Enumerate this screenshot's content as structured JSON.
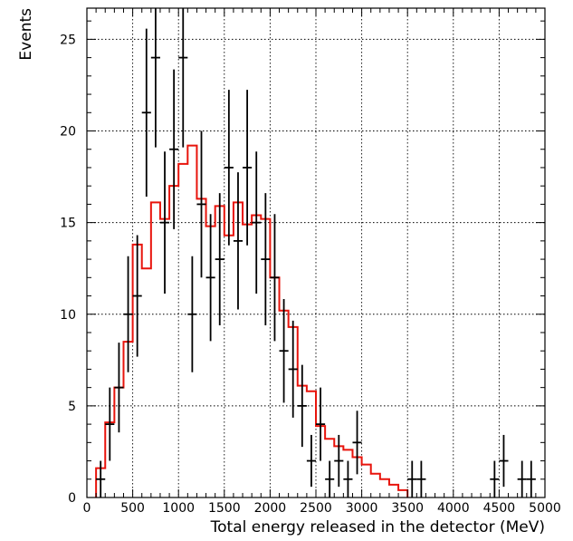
{
  "chart_data": {
    "type": "line",
    "title": "",
    "xlabel": "Total energy released in the detector (MeV)",
    "ylabel": "Events",
    "xlim": [
      0,
      5000
    ],
    "ylim": [
      0,
      26.7
    ],
    "x_ticks": [
      0,
      500,
      1000,
      1500,
      2000,
      2500,
      3000,
      3500,
      4000,
      4500,
      5000
    ],
    "y_ticks": [
      0,
      5,
      10,
      15,
      20,
      25
    ],
    "grid": true,
    "legend": "none",
    "colors": {
      "data": "#000000",
      "model": "#e8140c"
    },
    "series": [
      {
        "kind": "data-points-with-error-bars",
        "bin_width": 100,
        "points": [
          {
            "x": 150,
            "y": 1
          },
          {
            "x": 250,
            "y": 4
          },
          {
            "x": 350,
            "y": 6
          },
          {
            "x": 450,
            "y": 10
          },
          {
            "x": 550,
            "y": 11
          },
          {
            "x": 650,
            "y": 21
          },
          {
            "x": 750,
            "y": 24
          },
          {
            "x": 850,
            "y": 15
          },
          {
            "x": 950,
            "y": 19
          },
          {
            "x": 1050,
            "y": 24
          },
          {
            "x": 1150,
            "y": 10
          },
          {
            "x": 1250,
            "y": 16
          },
          {
            "x": 1350,
            "y": 12
          },
          {
            "x": 1450,
            "y": 13
          },
          {
            "x": 1550,
            "y": 18
          },
          {
            "x": 1650,
            "y": 14
          },
          {
            "x": 1750,
            "y": 18
          },
          {
            "x": 1850,
            "y": 15
          },
          {
            "x": 1950,
            "y": 13
          },
          {
            "x": 2050,
            "y": 12
          },
          {
            "x": 2150,
            "y": 8
          },
          {
            "x": 2250,
            "y": 7
          },
          {
            "x": 2350,
            "y": 5
          },
          {
            "x": 2450,
            "y": 2
          },
          {
            "x": 2550,
            "y": 4
          },
          {
            "x": 2650,
            "y": 1
          },
          {
            "x": 2750,
            "y": 2
          },
          {
            "x": 2850,
            "y": 1
          },
          {
            "x": 2950,
            "y": 3
          },
          {
            "x": 3550,
            "y": 1
          },
          {
            "x": 3650,
            "y": 1
          },
          {
            "x": 4450,
            "y": 1
          },
          {
            "x": 4550,
            "y": 2
          },
          {
            "x": 4750,
            "y": 1
          },
          {
            "x": 4850,
            "y": 1
          }
        ]
      },
      {
        "kind": "step-histogram",
        "bin_edges": [
          100,
          200,
          300,
          400,
          500,
          600,
          700,
          800,
          900,
          1000,
          1100,
          1200,
          1300,
          1400,
          1500,
          1600,
          1700,
          1800,
          1900,
          2000,
          2100,
          2200,
          2300,
          2400,
          2500,
          2600,
          2700,
          2800,
          2900,
          3000,
          3100,
          3200,
          3300,
          3400,
          3500
        ],
        "values": [
          1.6,
          4.1,
          6.0,
          8.5,
          13.8,
          12.5,
          16.1,
          15.2,
          17.0,
          18.2,
          19.2,
          16.3,
          14.8,
          15.9,
          14.3,
          16.1,
          14.9,
          15.4,
          15.2,
          12.0,
          10.2,
          9.3,
          6.1,
          5.8,
          3.9,
          3.2,
          2.8,
          2.6,
          2.2,
          1.8,
          1.3,
          1.0,
          0.7,
          0.4
        ]
      }
    ]
  }
}
